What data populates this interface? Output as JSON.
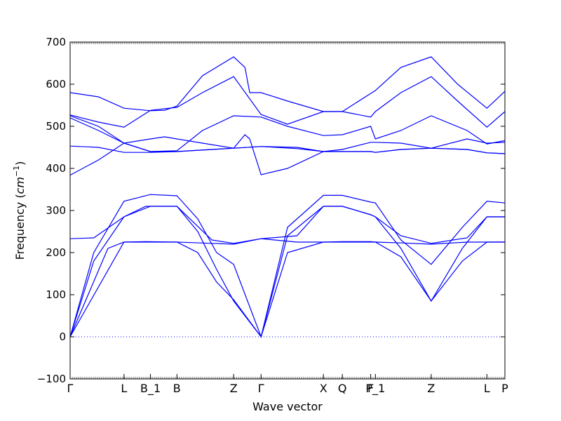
{
  "chart_data": {
    "type": "line",
    "xlabel": "Wave vector",
    "ylabel_text": "Frequency (",
    "ylabel_unit": "cm",
    "ylabel_exp": "−1",
    "ylabel_close": ")",
    "ylim": [
      -100,
      700
    ],
    "yticks": [
      -100,
      0,
      100,
      200,
      300,
      400,
      500,
      600,
      700
    ],
    "ytick_labels": [
      "−100",
      "0",
      "100",
      "200",
      "300",
      "400",
      "500",
      "600",
      "700"
    ],
    "xlim": [
      0,
      4.6
    ],
    "xticks": [
      0,
      0.57,
      0.85,
      1.13,
      1.73,
      2.02,
      2.68,
      2.88,
      3.18,
      3.23,
      3.82,
      4.41,
      4.6
    ],
    "xtick_labels": [
      "Γ",
      "L",
      "B_1",
      "B",
      "Z",
      "Γ",
      "X",
      "Q",
      "F",
      "P_1",
      "Z",
      "L",
      "P"
    ],
    "zero_line": 0,
    "color": "#0000ff",
    "series": [
      {
        "x": [
          0,
          0.57,
          0.8,
          1.13,
          1.5,
          1.73,
          2.02,
          2.4,
          2.68,
          2.88,
          3.18,
          3.23,
          3.5,
          3.82,
          4.2,
          4.41,
          4.6
        ],
        "y": [
          0,
          225,
          225,
          225,
          222,
          220,
          233,
          225,
          225,
          225,
          225,
          225,
          223,
          220,
          225,
          225,
          225
        ]
      },
      {
        "x": [
          0,
          0.4,
          0.57,
          0.8,
          1.13,
          1.35,
          1.55,
          1.73,
          2.02,
          2.3,
          2.68,
          2.88,
          3.18,
          3.23,
          3.5,
          3.82,
          4.15,
          4.41,
          4.6
        ],
        "y": [
          0,
          210,
          225,
          226,
          225,
          200,
          130,
          88,
          0,
          200,
          225,
          226,
          226,
          225,
          190,
          85,
          180,
          225,
          225
        ]
      },
      {
        "x": [
          0,
          0.25,
          0.57,
          0.8,
          1.13,
          1.35,
          1.55,
          1.73,
          2.02,
          2.3,
          2.68,
          2.88,
          3.18,
          3.23,
          3.5,
          3.82,
          4.15,
          4.41,
          4.6
        ],
        "y": [
          0,
          180,
          285,
          310,
          310,
          250,
          160,
          85,
          0,
          240,
          310,
          310,
          290,
          285,
          210,
          85,
          210,
          285,
          285
        ]
      },
      {
        "x": [
          0,
          0.25,
          0.57,
          0.85,
          1.13,
          1.35,
          1.55,
          1.73,
          2.02,
          2.3,
          2.68,
          2.88,
          3.18,
          3.23,
          3.5,
          3.82,
          4.15,
          4.41,
          4.6
        ],
        "y": [
          0,
          200,
          322,
          338,
          335,
          280,
          200,
          172,
          0,
          260,
          336,
          336,
          320,
          318,
          230,
          172,
          260,
          322,
          318
        ]
      },
      {
        "x": [
          0,
          0.25,
          0.57,
          0.85,
          1.13,
          1.5,
          1.73,
          2.02,
          2.4,
          2.68,
          2.88,
          3.18,
          3.23,
          3.5,
          3.82,
          4.2,
          4.41,
          4.6
        ],
        "y": [
          233,
          235,
          285,
          310,
          310,
          230,
          222,
          233,
          240,
          310,
          310,
          290,
          285,
          240,
          222,
          235,
          285,
          285
        ]
      },
      {
        "x": [
          0,
          0.3,
          0.57,
          0.85,
          1.13,
          1.5,
          1.73,
          2.02,
          2.4,
          2.68,
          2.88,
          3.18,
          3.23,
          3.5,
          3.82,
          4.2,
          4.41,
          4.6
        ],
        "y": [
          384,
          420,
          460,
          440,
          440,
          445,
          448,
          452,
          447,
          440,
          440,
          440,
          438,
          445,
          448,
          445,
          437,
          435
        ]
      },
      {
        "x": [
          0,
          0.3,
          0.57,
          0.85,
          1.13,
          1.5,
          1.73,
          2.02,
          2.4,
          2.68,
          2.88,
          3.18,
          3.23,
          3.5,
          3.82,
          4.2,
          4.41,
          4.6
        ],
        "y": [
          453,
          450,
          438,
          438,
          440,
          445,
          448,
          452,
          450,
          440,
          440,
          440,
          438,
          445,
          448,
          445,
          437,
          435
        ]
      },
      {
        "x": [
          0,
          0.3,
          0.57,
          0.85,
          1.0,
          1.13,
          1.4,
          1.73,
          1.85,
          1.9,
          2.02,
          2.3,
          2.68,
          2.88,
          3.18,
          3.23,
          3.5,
          3.82,
          4.2,
          4.41,
          4.6
        ],
        "y": [
          520,
          490,
          460,
          470,
          475,
          470,
          460,
          448,
          480,
          470,
          385,
          400,
          440,
          445,
          462,
          462,
          460,
          448,
          470,
          460,
          462
        ]
      },
      {
        "x": [
          0,
          0.3,
          0.57,
          0.85,
          1.13,
          1.4,
          1.73,
          2.02,
          2.3,
          2.68,
          2.88,
          3.18,
          3.23,
          3.5,
          3.82,
          4.2,
          4.41,
          4.6
        ],
        "y": [
          525,
          500,
          460,
          440,
          442,
          490,
          525,
          522,
          500,
          478,
          480,
          500,
          470,
          490,
          525,
          490,
          458,
          466
        ]
      },
      {
        "x": [
          0,
          0.3,
          0.57,
          0.85,
          1.13,
          1.4,
          1.73,
          2.02,
          2.3,
          2.68,
          2.88,
          3.18,
          3.23,
          3.5,
          3.82,
          4.1,
          4.41,
          4.6
        ],
        "y": [
          527,
          510,
          498,
          538,
          545,
          580,
          618,
          528,
          505,
          535,
          535,
          522,
          535,
          580,
          618,
          560,
          498,
          535
        ]
      },
      {
        "x": [
          0,
          0.3,
          0.57,
          0.85,
          1.0,
          1.13,
          1.4,
          1.73,
          1.85,
          1.9,
          2.02,
          2.3,
          2.68,
          2.88,
          3.18,
          3.23,
          3.5,
          3.82,
          4.1,
          4.41,
          4.6
        ],
        "y": [
          580,
          570,
          543,
          537,
          538,
          548,
          620,
          665,
          640,
          580,
          580,
          560,
          535,
          535,
          578,
          585,
          640,
          665,
          600,
          543,
          583
        ]
      }
    ]
  }
}
